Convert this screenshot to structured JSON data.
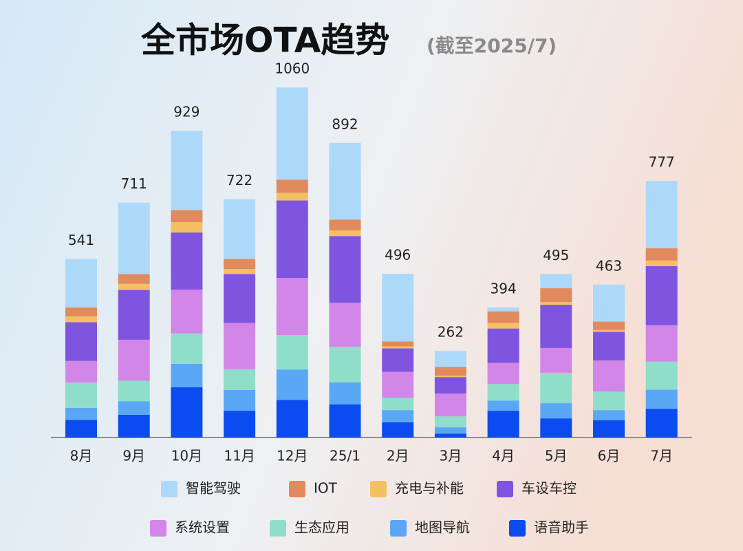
{
  "chart_data": {
    "type": "stacked-bar",
    "title": "全市场OTA趋势",
    "subtitle": "(截至2025/7)",
    "categories": [
      "8月",
      "9月",
      "10月",
      "11月",
      "12月",
      "25/1",
      "2月",
      "3月",
      "4月",
      "5月",
      "6月",
      "7月"
    ],
    "totals": [
      541,
      711,
      929,
      722,
      1060,
      892,
      496,
      262,
      394,
      495,
      463,
      777
    ],
    "series": [
      {
        "name": "智能驾驶",
        "color": "#acd9fa",
        "values": [
          147,
          216,
          240,
          181,
          279,
          232,
          205,
          48,
          12,
          43,
          112,
          204
        ]
      },
      {
        "name": "IOT",
        "color": "#e08a5e",
        "values": [
          27,
          30,
          37,
          31,
          40,
          33,
          15,
          27,
          35,
          42,
          25,
          37
        ]
      },
      {
        "name": "充电与补能",
        "color": "#f5bf63",
        "values": [
          18,
          18,
          31,
          15,
          23,
          17,
          6,
          4,
          17,
          8,
          6,
          17
        ]
      },
      {
        "name": "车设车控",
        "color": "#7f55e0",
        "values": [
          117,
          151,
          173,
          148,
          235,
          202,
          71,
          50,
          104,
          131,
          87,
          179
        ]
      },
      {
        "name": "系统设置",
        "color": "#d286e8",
        "values": [
          66,
          124,
          133,
          140,
          173,
          133,
          79,
          69,
          64,
          75,
          94,
          110
        ]
      },
      {
        "name": "生态应用",
        "color": "#8fdec9",
        "values": [
          76,
          62,
          92,
          63,
          104,
          108,
          37,
          33,
          50,
          92,
          56,
          85
        ]
      },
      {
        "name": "地图导航",
        "color": "#5aa8f5",
        "values": [
          37,
          41,
          71,
          63,
          92,
          67,
          37,
          19,
          31,
          46,
          31,
          58
        ]
      },
      {
        "name": "语音助手",
        "color": "#0b4cf0",
        "values": [
          53,
          69,
          152,
          81,
          114,
          100,
          46,
          12,
          81,
          58,
          52,
          87
        ]
      }
    ]
  }
}
